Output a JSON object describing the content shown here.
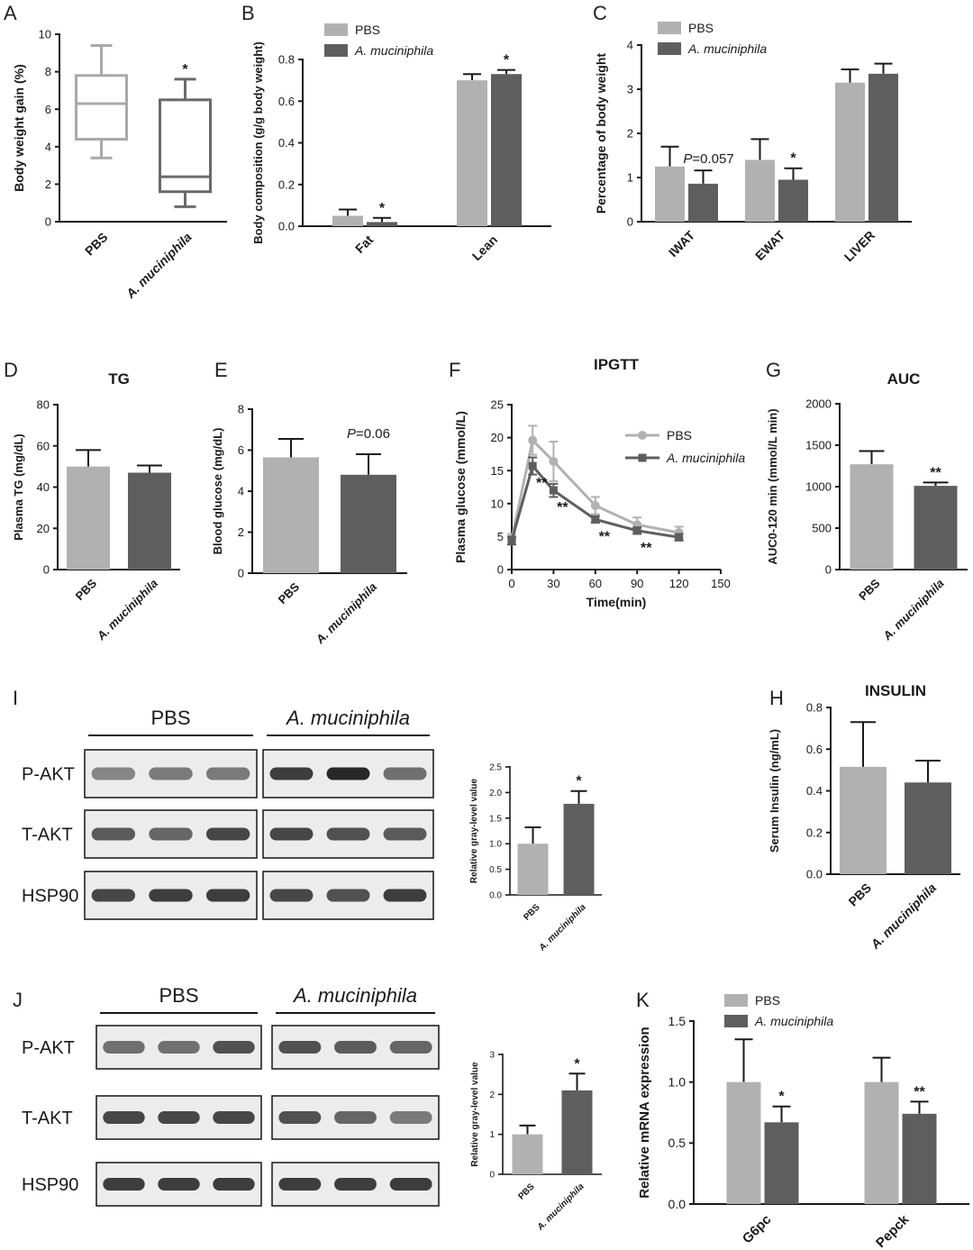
{
  "chart_data": [
    {
      "panel": "A",
      "type": "box",
      "categories": [
        "PBS",
        "A. muciniphila"
      ],
      "boxes": [
        {
          "min": 3.4,
          "q1": 4.4,
          "median": 6.3,
          "q3": 7.8,
          "max": 9.4
        },
        {
          "min": 0.8,
          "q1": 1.6,
          "median": 2.4,
          "q3": 6.5,
          "max": 7.6
        }
      ],
      "annotations": [
        "",
        "*"
      ],
      "ylabel": "Body weight gain (%)",
      "ylim": [
        0,
        10
      ],
      "yticks": [
        "0",
        "2",
        "4",
        "6",
        "8",
        "10"
      ]
    },
    {
      "panel": "B",
      "type": "bar",
      "categories": [
        "Fat",
        "Lean"
      ],
      "series": [
        {
          "name": "PBS",
          "values": [
            0.05,
            0.7
          ],
          "errors": [
            0.03,
            0.03
          ]
        },
        {
          "name": "A. muciniphila",
          "values": [
            0.02,
            0.73
          ],
          "errors": [
            0.02,
            0.02
          ]
        }
      ],
      "annotations": [
        [
          "",
          "*"
        ],
        [
          "",
          "*"
        ]
      ],
      "ylabel": "Body composition (g/g body weight)",
      "ylim": [
        0,
        0.8
      ],
      "yticks": [
        "0.0",
        "0.2",
        "0.4",
        "0.6",
        "0.8"
      ]
    },
    {
      "panel": "C",
      "type": "bar",
      "categories": [
        "IWAT",
        "EWAT",
        "LIVER"
      ],
      "series": [
        {
          "name": "PBS",
          "values": [
            1.25,
            1.4,
            3.15
          ],
          "errors": [
            0.45,
            0.47,
            0.3
          ]
        },
        {
          "name": "A. muciniphila",
          "values": [
            0.86,
            0.95,
            3.35
          ],
          "errors": [
            0.3,
            0.26,
            0.23
          ]
        }
      ],
      "annotations": [
        [
          "",
          ""
        ],
        [
          "",
          "*"
        ],
        [
          "",
          ""
        ]
      ],
      "pvalue_label": {
        "prefix": "P",
        "text": "=0.057"
      },
      "ylabel": "Percentage of body weight",
      "ylim": [
        0,
        4
      ],
      "yticks": [
        "0",
        "1",
        "2",
        "3",
        "4"
      ]
    },
    {
      "panel": "D",
      "type": "bar",
      "title": "TG",
      "categories": [
        "PBS",
        "A. muciniphila"
      ],
      "values": [
        50,
        47
      ],
      "errors": [
        8,
        3.5
      ],
      "ylabel": "Plasma TG (mg/dL)",
      "ylim": [
        0,
        80
      ],
      "yticks": [
        "0",
        "20",
        "40",
        "60",
        "80"
      ]
    },
    {
      "panel": "E",
      "type": "bar",
      "categories": [
        "PBS",
        "A. muciniphila"
      ],
      "values": [
        5.65,
        4.8
      ],
      "errors": [
        0.9,
        1.0
      ],
      "pvalue_label": {
        "prefix": "P",
        "text": "=0.06"
      },
      "ylabel": "Blood glucose (mg/dL)",
      "ylim": [
        0,
        8
      ],
      "yticks": [
        "0",
        "2",
        "4",
        "6",
        "8"
      ]
    },
    {
      "panel": "F",
      "type": "line",
      "title": "IPGTT",
      "x": [
        0,
        15,
        30,
        60,
        90,
        120
      ],
      "series": [
        {
          "name": "PBS",
          "values": [
            4.6,
            19.6,
            16.4,
            9.7,
            6.8,
            5.6
          ],
          "errors": [
            0.8,
            2.2,
            3.0,
            1.3,
            1.1,
            0.9
          ]
        },
        {
          "name": "A. muciniphila",
          "values": [
            4.4,
            15.7,
            12.0,
            7.6,
            5.9,
            4.9
          ],
          "errors": [
            0.6,
            1.3,
            1.0,
            0.5,
            0.5,
            0.5
          ]
        }
      ],
      "point_annotations": [
        "",
        "**",
        "**",
        "**",
        "**",
        ""
      ],
      "xlabel": "Time(min)",
      "ylabel": "Plasma glucose  (mmol/L)",
      "xlim": [
        0,
        150
      ],
      "xticks": [
        "0",
        "30",
        "60",
        "90",
        "120",
        "150"
      ],
      "ylim": [
        0,
        25
      ],
      "yticks": [
        "0",
        "5",
        "10",
        "15",
        "20",
        "25"
      ],
      "legend": "right"
    },
    {
      "panel": "G",
      "type": "bar",
      "title": "AUC",
      "categories": [
        "PBS",
        "A. muciniphila"
      ],
      "values": [
        1270,
        1010
      ],
      "errors": [
        160,
        40
      ],
      "annotations": [
        "",
        "**"
      ],
      "ylabel": "AUC0-120 min (mmol/L min)",
      "ylim": [
        0,
        2000
      ],
      "yticks": [
        "0",
        "500",
        "1000",
        "1500",
        "2000"
      ]
    },
    {
      "panel": "H",
      "type": "bar",
      "title": "INSULIN",
      "categories": [
        "PBS",
        "A. muciniphila"
      ],
      "values": [
        0.515,
        0.44
      ],
      "errors": [
        0.215,
        0.105
      ],
      "ylabel": "Serum Insulin (ng/mL)",
      "ylim": [
        0,
        0.8
      ],
      "yticks": [
        "0.0",
        "0.2",
        "0.4",
        "0.6",
        "0.8"
      ]
    },
    {
      "panel": "I",
      "type": "bar",
      "categories": [
        "PBS",
        "A. muciniphila"
      ],
      "values": [
        1.0,
        1.78
      ],
      "errors": [
        0.32,
        0.25
      ],
      "annotations": [
        "",
        "*"
      ],
      "ylabel": "Relative gray-level value",
      "ylim": [
        0,
        2.5
      ],
      "yticks": [
        "0.0",
        "0.5",
        "1.0",
        "1.5",
        "2.0",
        "2.5"
      ],
      "blot": {
        "groups": [
          "PBS",
          "A. muciniphila"
        ],
        "rows": [
          "P-AKT",
          "T-AKT",
          "HSP90"
        ]
      }
    },
    {
      "panel": "J",
      "type": "bar",
      "categories": [
        "PBS",
        "A. muciniphila"
      ],
      "values": [
        1.0,
        2.1
      ],
      "errors": [
        0.22,
        0.42
      ],
      "annotations": [
        "",
        "*"
      ],
      "ylabel": "Relative gray-level value",
      "ylim": [
        0,
        3
      ],
      "yticks": [
        "0",
        "1",
        "2",
        "3"
      ],
      "blot": {
        "groups": [
          "PBS",
          "A. muciniphila"
        ],
        "rows": [
          "P-AKT",
          "T-AKT",
          "HSP90"
        ]
      }
    },
    {
      "panel": "K",
      "type": "bar",
      "categories": [
        "G6pc",
        "Pepck"
      ],
      "series": [
        {
          "name": "PBS",
          "values": [
            1.0,
            1.0
          ],
          "errors": [
            0.35,
            0.2
          ]
        },
        {
          "name": "A. muciniphila",
          "values": [
            0.67,
            0.74
          ],
          "errors": [
            0.13,
            0.1
          ]
        }
      ],
      "annotations": [
        [
          "",
          "*"
        ],
        [
          "",
          "**"
        ]
      ],
      "ylabel": "Relative mRNA expression",
      "ylim": [
        0,
        1.5
      ],
      "yticks": [
        "0.0",
        "0.5",
        "1.0",
        "1.5"
      ]
    }
  ],
  "colors": {
    "pbs": "#b1b1b1",
    "akk": "#5e5e5e",
    "axis": "#1a1a1a"
  }
}
